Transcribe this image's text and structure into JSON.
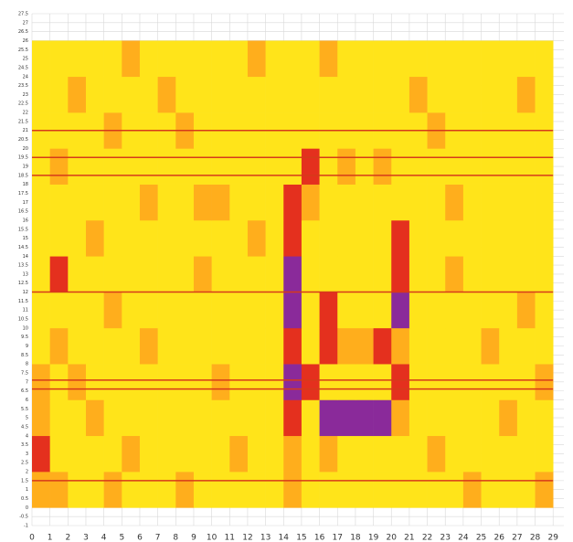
{
  "chart_data": {
    "type": "heatmap",
    "xlim": [
      0,
      29.6
    ],
    "ylim": [
      -1,
      27.5
    ],
    "xticks": [
      0,
      1,
      2,
      3,
      4,
      5,
      6,
      7,
      8,
      9,
      10,
      11,
      12,
      13,
      14,
      15,
      16,
      17,
      18,
      19,
      20,
      21,
      22,
      23,
      24,
      25,
      26,
      27,
      28,
      29
    ],
    "yticks": [
      -1,
      -0.5,
      0,
      0.5,
      1,
      1.5,
      2,
      2.5,
      3,
      3.5,
      4,
      4.5,
      5,
      5.5,
      6,
      6.5,
      7,
      7.5,
      8,
      8.5,
      9,
      9.5,
      10,
      10.5,
      11,
      11.5,
      12,
      12.5,
      13,
      13.5,
      14,
      14.5,
      15,
      15.5,
      16,
      16.5,
      17,
      17.5,
      18,
      18.5,
      19,
      19.5,
      20,
      20.5,
      21,
      21.5,
      22,
      22.5,
      23,
      23.5,
      24,
      24.5,
      25,
      25.5,
      26,
      26.5,
      27,
      27.5
    ],
    "grid": true,
    "x_edges": [
      0,
      1,
      2,
      3,
      4,
      5,
      6,
      7,
      8,
      9,
      10,
      11,
      12,
      13,
      14,
      15,
      16,
      17,
      18,
      19,
      20,
      21,
      22,
      23,
      24,
      25,
      26,
      27,
      28,
      29
    ],
    "y_edges": [
      0,
      2,
      4,
      6,
      8,
      10,
      12,
      14,
      16,
      18,
      20,
      22,
      24,
      26
    ],
    "colorscale": [
      "#ffe41a",
      "#ffae1c",
      "#e4301e",
      "#8a2a9a"
    ],
    "z": [
      [
        1,
        1,
        0,
        0,
        1,
        0,
        0,
        0,
        1,
        0,
        0,
        0,
        0,
        0,
        1,
        0,
        0,
        0,
        0,
        0,
        0,
        0,
        0,
        0,
        1,
        0,
        0,
        0,
        1
      ],
      [
        2,
        0,
        0,
        0,
        0,
        1,
        0,
        0,
        0,
        0,
        0,
        1,
        0,
        0,
        1,
        0,
        1,
        0,
        0,
        0,
        0,
        0,
        1,
        0,
        0,
        0,
        0,
        0,
        0
      ],
      [
        1,
        0,
        0,
        1,
        0,
        0,
        0,
        0,
        0,
        0,
        0,
        0,
        0,
        0,
        2,
        0,
        3,
        3,
        3,
        3,
        1,
        0,
        0,
        0,
        0,
        0,
        1,
        0,
        0
      ],
      [
        1,
        0,
        1,
        0,
        0,
        0,
        0,
        0,
        0,
        0,
        1,
        0,
        0,
        0,
        3,
        2,
        0,
        0,
        0,
        0,
        2,
        0,
        0,
        0,
        0,
        0,
        0,
        0,
        1
      ],
      [
        0,
        1,
        0,
        0,
        0,
        0,
        1,
        0,
        0,
        0,
        0,
        0,
        0,
        0,
        2,
        0,
        2,
        1,
        1,
        2,
        1,
        0,
        0,
        0,
        0,
        1,
        0,
        0,
        0
      ],
      [
        0,
        0,
        0,
        0,
        1,
        0,
        0,
        0,
        0,
        0,
        0,
        0,
        0,
        0,
        3,
        0,
        2,
        0,
        0,
        0,
        3,
        0,
        0,
        0,
        0,
        0,
        0,
        1,
        0
      ],
      [
        0,
        2,
        0,
        0,
        0,
        0,
        0,
        0,
        0,
        1,
        0,
        0,
        0,
        0,
        3,
        0,
        0,
        0,
        0,
        0,
        2,
        0,
        0,
        1,
        0,
        0,
        0,
        0,
        0
      ],
      [
        0,
        0,
        0,
        1,
        0,
        0,
        0,
        0,
        0,
        0,
        0,
        0,
        1,
        0,
        2,
        0,
        0,
        0,
        0,
        0,
        2,
        0,
        0,
        0,
        0,
        0,
        0,
        0,
        0
      ],
      [
        0,
        0,
        0,
        0,
        0,
        0,
        1,
        0,
        0,
        1,
        1,
        0,
        0,
        0,
        2,
        1,
        0,
        0,
        0,
        0,
        0,
        0,
        0,
        1,
        0,
        0,
        0,
        0,
        0
      ],
      [
        0,
        1,
        0,
        0,
        0,
        0,
        0,
        0,
        0,
        0,
        0,
        0,
        0,
        0,
        0,
        2,
        0,
        1,
        0,
        1,
        0,
        0,
        0,
        0,
        0,
        0,
        0,
        0,
        0
      ],
      [
        0,
        0,
        0,
        0,
        1,
        0,
        0,
        0,
        1,
        0,
        0,
        0,
        0,
        0,
        0,
        0,
        0,
        0,
        0,
        0,
        0,
        0,
        1,
        0,
        0,
        0,
        0,
        0,
        0
      ],
      [
        0,
        0,
        1,
        0,
        0,
        0,
        0,
        1,
        0,
        0,
        0,
        0,
        0,
        0,
        0,
        0,
        0,
        0,
        0,
        0,
        0,
        1,
        0,
        0,
        0,
        0,
        0,
        1,
        0
      ],
      [
        0,
        0,
        0,
        0,
        0,
        1,
        0,
        0,
        0,
        0,
        0,
        0,
        1,
        0,
        0,
        0,
        1,
        0,
        0,
        0,
        0,
        0,
        0,
        0,
        0,
        0,
        0,
        0,
        0
      ]
    ],
    "hlines": [
      1.5,
      6.6,
      7.1,
      12,
      18.5,
      19.5,
      21
    ],
    "hline_color": "#d63a1a"
  }
}
